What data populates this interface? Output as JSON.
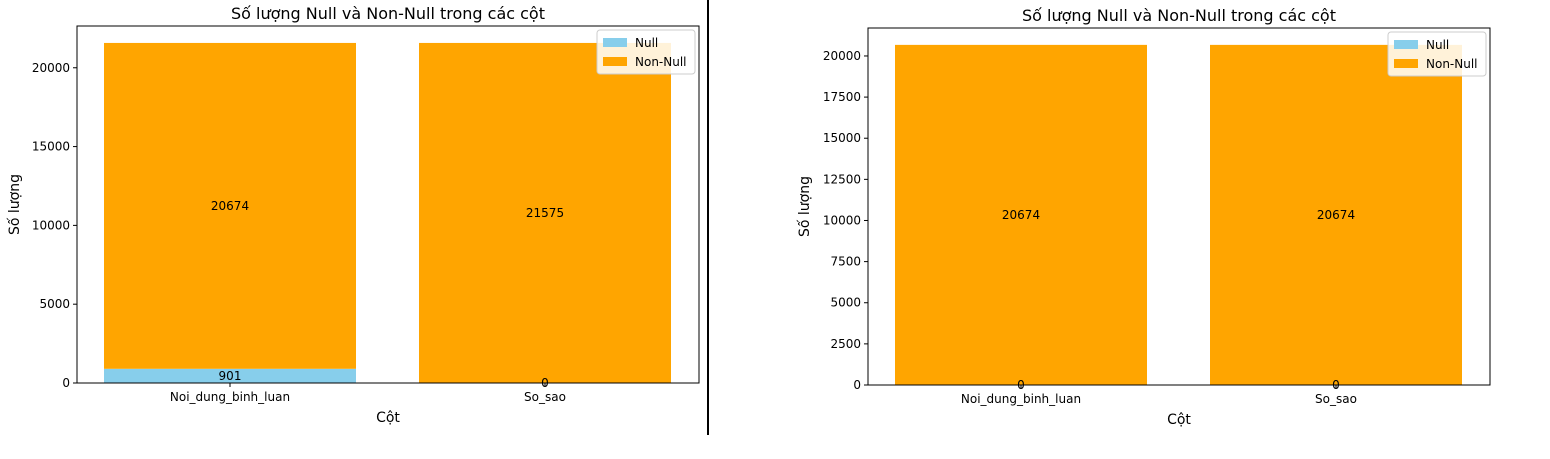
{
  "chart_data": [
    {
      "type": "bar",
      "stacked": true,
      "title": "Số lượng Null và Non-Null trong các cột",
      "xlabel": "Cột",
      "ylabel": "Số lượng",
      "categories": [
        "Noi_dung_binh_luan",
        "So_sao"
      ],
      "series": [
        {
          "name": "Null",
          "values": [
            901,
            0
          ],
          "color": "#87ceeb"
        },
        {
          "name": "Non-Null",
          "values": [
            20674,
            21575
          ],
          "color": "#ffa500"
        }
      ],
      "ylim": [
        0,
        22650
      ],
      "yticks": [
        0,
        5000,
        10000,
        15000,
        20000
      ],
      "grid": false,
      "legend": "top-right"
    },
    {
      "type": "bar",
      "stacked": true,
      "title": "Số lượng Null và Non-Null trong các cột",
      "xlabel": "Cột",
      "ylabel": "Số lượng",
      "categories": [
        "Noi_dung_binh_luan",
        "So_sao"
      ],
      "series": [
        {
          "name": "Null",
          "values": [
            0,
            0
          ],
          "color": "#87ceeb"
        },
        {
          "name": "Non-Null",
          "values": [
            20674,
            20674
          ],
          "color": "#ffa500"
        }
      ],
      "ylim": [
        0,
        21700
      ],
      "yticks": [
        0,
        2500,
        5000,
        7500,
        10000,
        12500,
        15000,
        17500,
        20000
      ],
      "grid": false,
      "legend": "top-right"
    }
  ]
}
